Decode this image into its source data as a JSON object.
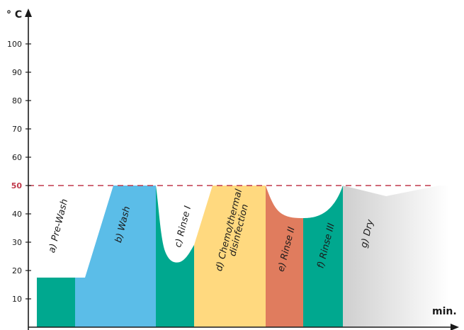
{
  "chart_data": {
    "type": "area",
    "ylabel": "° C",
    "xlabel": "min.",
    "ylim": [
      0,
      110
    ],
    "yticks": [
      10,
      20,
      30,
      40,
      50,
      60,
      70,
      80,
      90,
      100
    ],
    "threshold": {
      "value": 50,
      "label": "50",
      "color": "#c0394b",
      "style": "dashed"
    },
    "phases": [
      {
        "id": "a",
        "label": "a) Pre-Wash",
        "color": "#00a88f",
        "temps": [
          17.5,
          17.5
        ]
      },
      {
        "id": "b",
        "label": "b) Wash",
        "color": "#5bbde8",
        "temps": [
          17.5,
          50,
          50
        ]
      },
      {
        "id": "c",
        "label": "c) Rinse I",
        "color": "#00a88f",
        "temps": [
          50,
          23,
          50
        ]
      },
      {
        "id": "d",
        "label": "d) Chemo/thermal disinfection",
        "label_lines": [
          "d) Chemo/thermal",
          "disinfection"
        ],
        "color": "#ffd97f",
        "temps": [
          23,
          50,
          50
        ]
      },
      {
        "id": "e",
        "label": "e) Rinse II",
        "color": "#e07c5e",
        "temps": [
          50,
          39
        ]
      },
      {
        "id": "f",
        "label": "f) Rinse III",
        "color": "#00a88f",
        "temps": [
          39,
          50
        ]
      },
      {
        "id": "g",
        "label": "g) Dry",
        "color": "#d9d9d9",
        "temps": [
          50,
          46,
          50
        ]
      }
    ]
  }
}
